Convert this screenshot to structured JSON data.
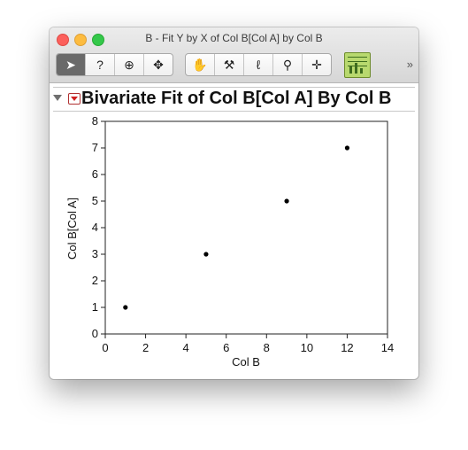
{
  "window": {
    "title": "B - Fit Y by X of Col B[Col A] by Col B"
  },
  "toolbar": {
    "tools": [
      {
        "name": "arrow-tool",
        "icon": "arrow-icon",
        "glyph": "➤",
        "active": true
      },
      {
        "name": "help-tool",
        "icon": "help-icon",
        "glyph": "?",
        "active": false
      },
      {
        "name": "selection-tool",
        "icon": "selection-crosshair-icon",
        "glyph": "⊕",
        "active": false
      },
      {
        "name": "scroller-tool",
        "icon": "move-icon",
        "glyph": "✥",
        "active": false
      }
    ],
    "tools2": [
      {
        "name": "grabber-tool",
        "icon": "hand-icon",
        "glyph": "✋"
      },
      {
        "name": "brush-tool",
        "icon": "brush-icon",
        "glyph": "⚒"
      },
      {
        "name": "lasso-tool",
        "icon": "lasso-icon",
        "glyph": "ℓ"
      },
      {
        "name": "magnifier-tool",
        "icon": "magnifier-icon",
        "glyph": "⚲"
      },
      {
        "name": "crosshair-tool",
        "icon": "crosshair-icon",
        "glyph": "✛"
      }
    ],
    "overflow_glyph": "»"
  },
  "report": {
    "title": "Bivariate Fit of Col B[Col A] By Col B"
  },
  "chart_data": {
    "type": "scatter",
    "title": "",
    "xlabel": "Col B",
    "ylabel": "Col B[Col A]",
    "xlim": [
      0,
      14
    ],
    "ylim": [
      0,
      8
    ],
    "xticks": [
      0,
      2,
      4,
      6,
      8,
      10,
      12,
      14
    ],
    "yticks": [
      0,
      1,
      2,
      3,
      4,
      5,
      6,
      7,
      8
    ],
    "grid": false,
    "points": [
      {
        "x": 1,
        "y": 1
      },
      {
        "x": 5,
        "y": 3
      },
      {
        "x": 9,
        "y": 5
      },
      {
        "x": 12,
        "y": 7
      }
    ]
  }
}
